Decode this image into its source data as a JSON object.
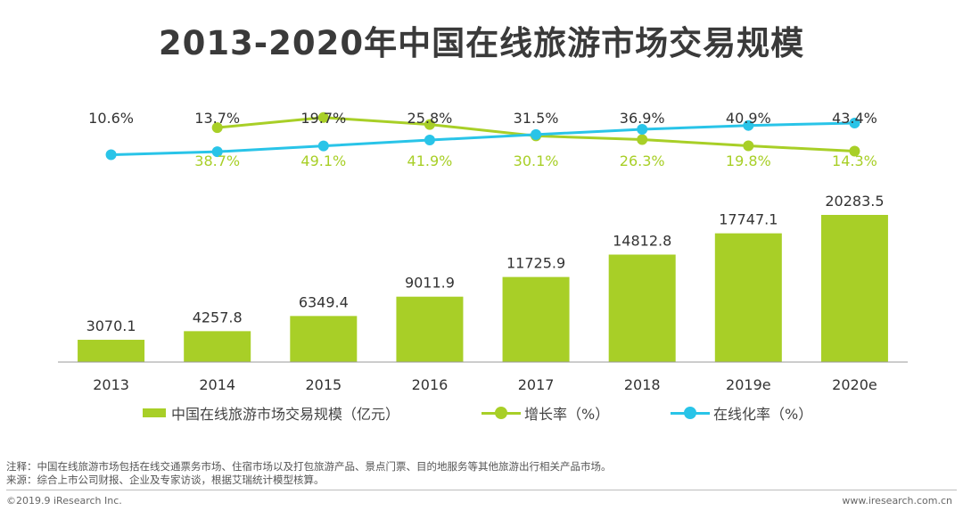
{
  "title": "2013-2020年中国在线旅游市场交易规模",
  "chart_data": {
    "type": "bar+line",
    "categories": [
      "2013",
      "2014",
      "2015",
      "2016",
      "2017",
      "2018",
      "2019e",
      "2020e"
    ],
    "bar_series": {
      "name": "中国在线旅游市场交易规模（亿元）",
      "values": [
        3070.1,
        4257.8,
        6349.4,
        9011.9,
        11725.9,
        14812.8,
        17747.1,
        20283.5
      ],
      "labels": [
        "3070.1",
        "4257.8",
        "6349.4",
        "9011.9",
        "11725.9",
        "14812.8",
        "17747.1",
        "20283.5"
      ],
      "color": "#a8cf27"
    },
    "line_series": [
      {
        "name": "增长率（%）",
        "values": [
          null,
          38.7,
          49.1,
          41.9,
          30.1,
          26.3,
          19.8,
          14.3
        ],
        "labels": [
          "",
          "38.7%",
          "49.1%",
          "41.9%",
          "30.1%",
          "26.3%",
          "19.8%",
          "14.3%"
        ],
        "color": "#a8cf27"
      },
      {
        "name": "在线化率（%）",
        "values": [
          10.6,
          13.7,
          19.7,
          25.8,
          31.5,
          36.9,
          40.9,
          43.4
        ],
        "labels": [
          "10.6%",
          "13.7%",
          "19.7%",
          "25.8%",
          "31.5%",
          "36.9%",
          "40.9%",
          "43.4%"
        ],
        "color": "#29c4e8"
      }
    ],
    "legend_position": "bottom",
    "grid": false
  },
  "legend": {
    "bar_label": "中国在线旅游市场交易规模（亿元）",
    "growth_label": "增长率（%）",
    "online_label": "在线化率（%）"
  },
  "notes": {
    "line1": "注释：中国在线旅游市场包括在线交通票务市场、住宿市场以及打包旅游产品、景点门票、目的地服务等其他旅游出行相关产品市场。",
    "line2": "来源：综合上市公司财报、企业及专家访谈，根据艾瑞统计模型核算。"
  },
  "footer": {
    "copyright": "©2019.9 iResearch Inc.",
    "website": "www.iresearch.com.cn"
  }
}
